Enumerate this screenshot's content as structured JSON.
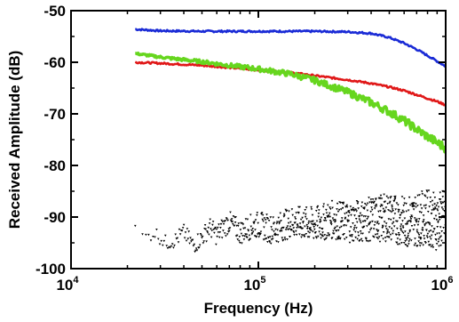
{
  "chart_data": {
    "type": "line",
    "title": "",
    "xlabel": "Frequency (Hz)",
    "ylabel": "Received Amplitude (dB)",
    "xscale": "log",
    "xlim": [
      10000,
      1000000
    ],
    "ylim": [
      -100,
      -50
    ],
    "x_ticks": [
      {
        "base": "10",
        "exp": "4",
        "value": 10000
      },
      {
        "base": "10",
        "exp": "5",
        "value": 100000
      },
      {
        "base": "10",
        "exp": "6",
        "value": 1000000
      }
    ],
    "y_ticks": [
      "-50",
      "-60",
      "-70",
      "-80",
      "-90",
      "-100"
    ],
    "y_tick_values": [
      -50,
      -60,
      -70,
      -80,
      -90,
      -100
    ],
    "grid": false,
    "legend": "none",
    "series": [
      {
        "color": "#1a2bd6",
        "style": "line",
        "x": [
          22000,
          30000,
          50000,
          100000,
          150000,
          200000,
          300000,
          400000,
          500000,
          600000,
          700000,
          800000,
          900000,
          1000000
        ],
        "y": [
          -53.6,
          -53.9,
          -54.0,
          -54.0,
          -54.0,
          -54.0,
          -54.1,
          -54.4,
          -55.2,
          -56.3,
          -57.5,
          -58.7,
          -59.8,
          -60.8
        ]
      },
      {
        "color": "#e01818",
        "style": "line",
        "x": [
          22000,
          30000,
          50000,
          100000,
          150000,
          200000,
          300000,
          400000,
          500000,
          600000,
          700000,
          800000,
          900000,
          1000000
        ],
        "y": [
          -60.0,
          -60.2,
          -60.6,
          -61.5,
          -62.0,
          -62.6,
          -63.4,
          -64.1,
          -64.8,
          -65.5,
          -66.3,
          -67.0,
          -67.6,
          -68.3
        ]
      },
      {
        "color": "#66d61e",
        "style": "line",
        "x": [
          22000,
          30000,
          50000,
          70000,
          100000,
          150000,
          200000,
          300000,
          400000,
          500000,
          600000,
          700000,
          800000,
          900000,
          1000000
        ],
        "y": [
          -58.3,
          -59.0,
          -59.9,
          -60.6,
          -61.3,
          -62.3,
          -63.5,
          -65.8,
          -67.8,
          -69.6,
          -71.3,
          -73.0,
          -74.4,
          -75.6,
          -76.6
        ]
      },
      {
        "color": "#000000",
        "style": "scatter",
        "x": [
          22000,
          25000,
          28000,
          32000,
          36000,
          40000,
          45000,
          50000,
          55000,
          60000,
          65000,
          70000,
          80000,
          90000,
          100000,
          120000,
          150000,
          200000,
          250000,
          300000,
          400000,
          500000,
          600000,
          700000,
          800000,
          900000,
          1000000
        ],
        "y": [
          -92.5,
          -94.0,
          -93.0,
          -95.0,
          -94.5,
          -93.0,
          -95.5,
          -94.0,
          -92.0,
          -93.5,
          -92.0,
          -91.0,
          -93.0,
          -92.0,
          -91.5,
          -92.5,
          -91.0,
          -91.5,
          -90.5,
          -91.0,
          -90.5,
          -90.0,
          -91.0,
          -90.5,
          -90.0,
          -91.0,
          -90.0
        ]
      }
    ]
  }
}
